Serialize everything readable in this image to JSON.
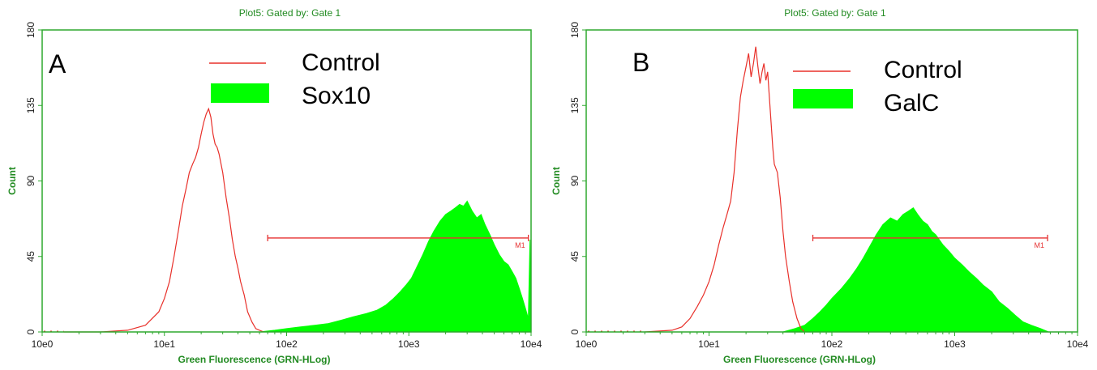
{
  "colors": {
    "control_line": "#e8302a",
    "stained_fill": "#00ff00",
    "frame": "#2ea82e",
    "axis_text": "#228b22",
    "marker": "#e63232"
  },
  "chart_data": [
    {
      "type": "area",
      "panel_label": "A",
      "title": "Plot5:  Gated by: Gate 1",
      "xlabel": "Green Fluorescence (GRN-HLog)",
      "ylabel": "Count",
      "x_scale": "log",
      "xlim": [
        1,
        10000
      ],
      "ylim": [
        0,
        180
      ],
      "xticks": [
        1,
        10,
        100,
        1000,
        10000
      ],
      "xtick_labels": [
        "10e0",
        "10e1",
        "10e2",
        "10e3",
        "10e4"
      ],
      "yticks": [
        0,
        45,
        90,
        135,
        180
      ],
      "ytick_labels": [
        "0",
        "45",
        "90",
        "135",
        "180"
      ],
      "grid": false,
      "legend": [
        {
          "label": "Control",
          "style": "line"
        },
        {
          "label": "Sox10",
          "style": "fill"
        }
      ],
      "marker": {
        "label": "M1",
        "x_start": 70,
        "x_end": 9500,
        "y": 56
      },
      "series": [
        {
          "name": "Control",
          "style": "line",
          "x": [
            1.5,
            3,
            5,
            7,
            9,
            10,
            11,
            12,
            13,
            14,
            15,
            16,
            17,
            18,
            19,
            20,
            21,
            22,
            23,
            24,
            25,
            26,
            27,
            28,
            30,
            32,
            34,
            36,
            38,
            40,
            42,
            45,
            48,
            52,
            56,
            60,
            65
          ],
          "y": [
            0,
            0,
            1,
            4,
            12,
            20,
            30,
            45,
            60,
            75,
            85,
            95,
            100,
            104,
            110,
            118,
            125,
            130,
            133,
            128,
            118,
            112,
            110,
            106,
            95,
            80,
            68,
            55,
            45,
            38,
            30,
            22,
            12,
            6,
            2,
            1,
            0
          ]
        },
        {
          "name": "Sox10",
          "style": "fill",
          "x": [
            60,
            80,
            100,
            130,
            170,
            220,
            280,
            350,
            450,
            550,
            650,
            750,
            850,
            950,
            1050,
            1150,
            1300,
            1450,
            1600,
            1800,
            2000,
            2200,
            2400,
            2600,
            2800,
            3000,
            3300,
            3600,
            3900,
            4200,
            4600,
            5000,
            5500,
            6000,
            6500,
            7000,
            7500,
            8000,
            8500,
            9000,
            9500,
            9800,
            10000
          ],
          "y": [
            0,
            1,
            2,
            3,
            4,
            5,
            7,
            9,
            11,
            13,
            16,
            20,
            24,
            28,
            32,
            38,
            46,
            54,
            60,
            66,
            70,
            72,
            74,
            76,
            75,
            78,
            72,
            68,
            70,
            64,
            58,
            52,
            46,
            42,
            40,
            36,
            32,
            26,
            20,
            14,
            8,
            55,
            0
          ]
        }
      ]
    },
    {
      "type": "area",
      "panel_label": "B",
      "title": "Plot5:  Gated by: Gate 1",
      "xlabel": "Green Fluorescence (GRN-HLog)",
      "ylabel": "Count",
      "x_scale": "log",
      "xlim": [
        1,
        10000
      ],
      "ylim": [
        0,
        180
      ],
      "xticks": [
        1,
        10,
        100,
        1000,
        10000
      ],
      "xtick_labels": [
        "10e0",
        "10e1",
        "10e2",
        "10e3",
        "10e4"
      ],
      "yticks": [
        0,
        45,
        90,
        135,
        180
      ],
      "ytick_labels": [
        "0",
        "45",
        "90",
        "135",
        "180"
      ],
      "grid": false,
      "legend": [
        {
          "label": "Control",
          "style": "line"
        },
        {
          "label": "GalC",
          "style": "fill"
        }
      ],
      "marker": {
        "label": "M1",
        "x_start": 70,
        "x_end": 5700,
        "y": 56
      },
      "series": [
        {
          "name": "Control",
          "style": "line",
          "x": [
            3,
            5,
            6,
            7,
            8,
            9,
            10,
            11,
            12,
            13,
            14,
            15,
            16,
            17,
            18,
            19,
            20,
            21,
            22,
            23,
            24,
            25,
            26,
            27,
            28,
            29,
            30,
            31,
            32,
            33,
            34,
            36,
            38,
            40,
            42,
            45,
            48,
            52,
            56,
            60
          ],
          "y": [
            0,
            1,
            3,
            8,
            15,
            22,
            30,
            40,
            52,
            62,
            70,
            78,
            95,
            120,
            140,
            150,
            158,
            166,
            152,
            160,
            170,
            158,
            148,
            155,
            160,
            150,
            155,
            140,
            125,
            110,
            100,
            95,
            80,
            60,
            45,
            30,
            18,
            8,
            2,
            0
          ]
        },
        {
          "name": "GalC",
          "style": "fill",
          "x": [
            40,
            50,
            60,
            70,
            80,
            90,
            100,
            120,
            140,
            160,
            180,
            200,
            230,
            260,
            300,
            340,
            380,
            420,
            460,
            500,
            550,
            600,
            650,
            700,
            800,
            900,
            1000,
            1150,
            1300,
            1500,
            1700,
            2000,
            2300,
            2700,
            3100,
            3600,
            4200,
            5000,
            5800
          ],
          "y": [
            0,
            2,
            4,
            8,
            12,
            16,
            20,
            26,
            32,
            38,
            44,
            50,
            58,
            64,
            68,
            66,
            70,
            72,
            74,
            70,
            66,
            64,
            60,
            58,
            52,
            48,
            44,
            40,
            36,
            32,
            28,
            24,
            18,
            14,
            10,
            6,
            4,
            2,
            0
          ]
        }
      ]
    }
  ]
}
